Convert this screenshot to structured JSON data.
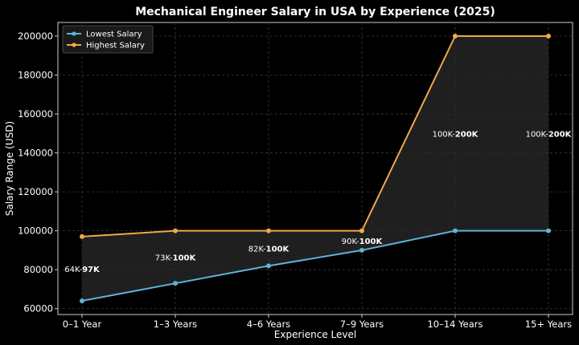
{
  "chart_data": {
    "type": "line",
    "title": "Mechanical Engineer Salary in USA by Experience (2025)",
    "xlabel": "Experience Level",
    "ylabel": "Salary Range (USD)",
    "categories": [
      "0–1 Year",
      "1–3 Years",
      "4–6 Years",
      "7–9 Years",
      "10–14 Years",
      "15+ Years"
    ],
    "series": [
      {
        "name": "Lowest Salary",
        "color": "#5fb3d6",
        "values": [
          64000,
          73000,
          82000,
          90000,
          100000,
          100000
        ]
      },
      {
        "name": "Highest Salary",
        "color": "#f0a948",
        "values": [
          97000,
          100000,
          100000,
          100000,
          200000,
          200000
        ]
      }
    ],
    "range_labels": [
      {
        "low": "64K",
        "high": "97K"
      },
      {
        "low": "73K",
        "high": "100K"
      },
      {
        "low": "82K",
        "high": "100K"
      },
      {
        "low": "90K",
        "high": "100K"
      },
      {
        "low": "100K",
        "high": "200K"
      },
      {
        "low": "100K",
        "high": "200K"
      }
    ],
    "ylim": [
      57000,
      207000
    ],
    "yticks": [
      60000,
      80000,
      100000,
      120000,
      140000,
      160000,
      180000,
      200000
    ],
    "grid": true,
    "fill_between": true,
    "legend": "top-left"
  }
}
